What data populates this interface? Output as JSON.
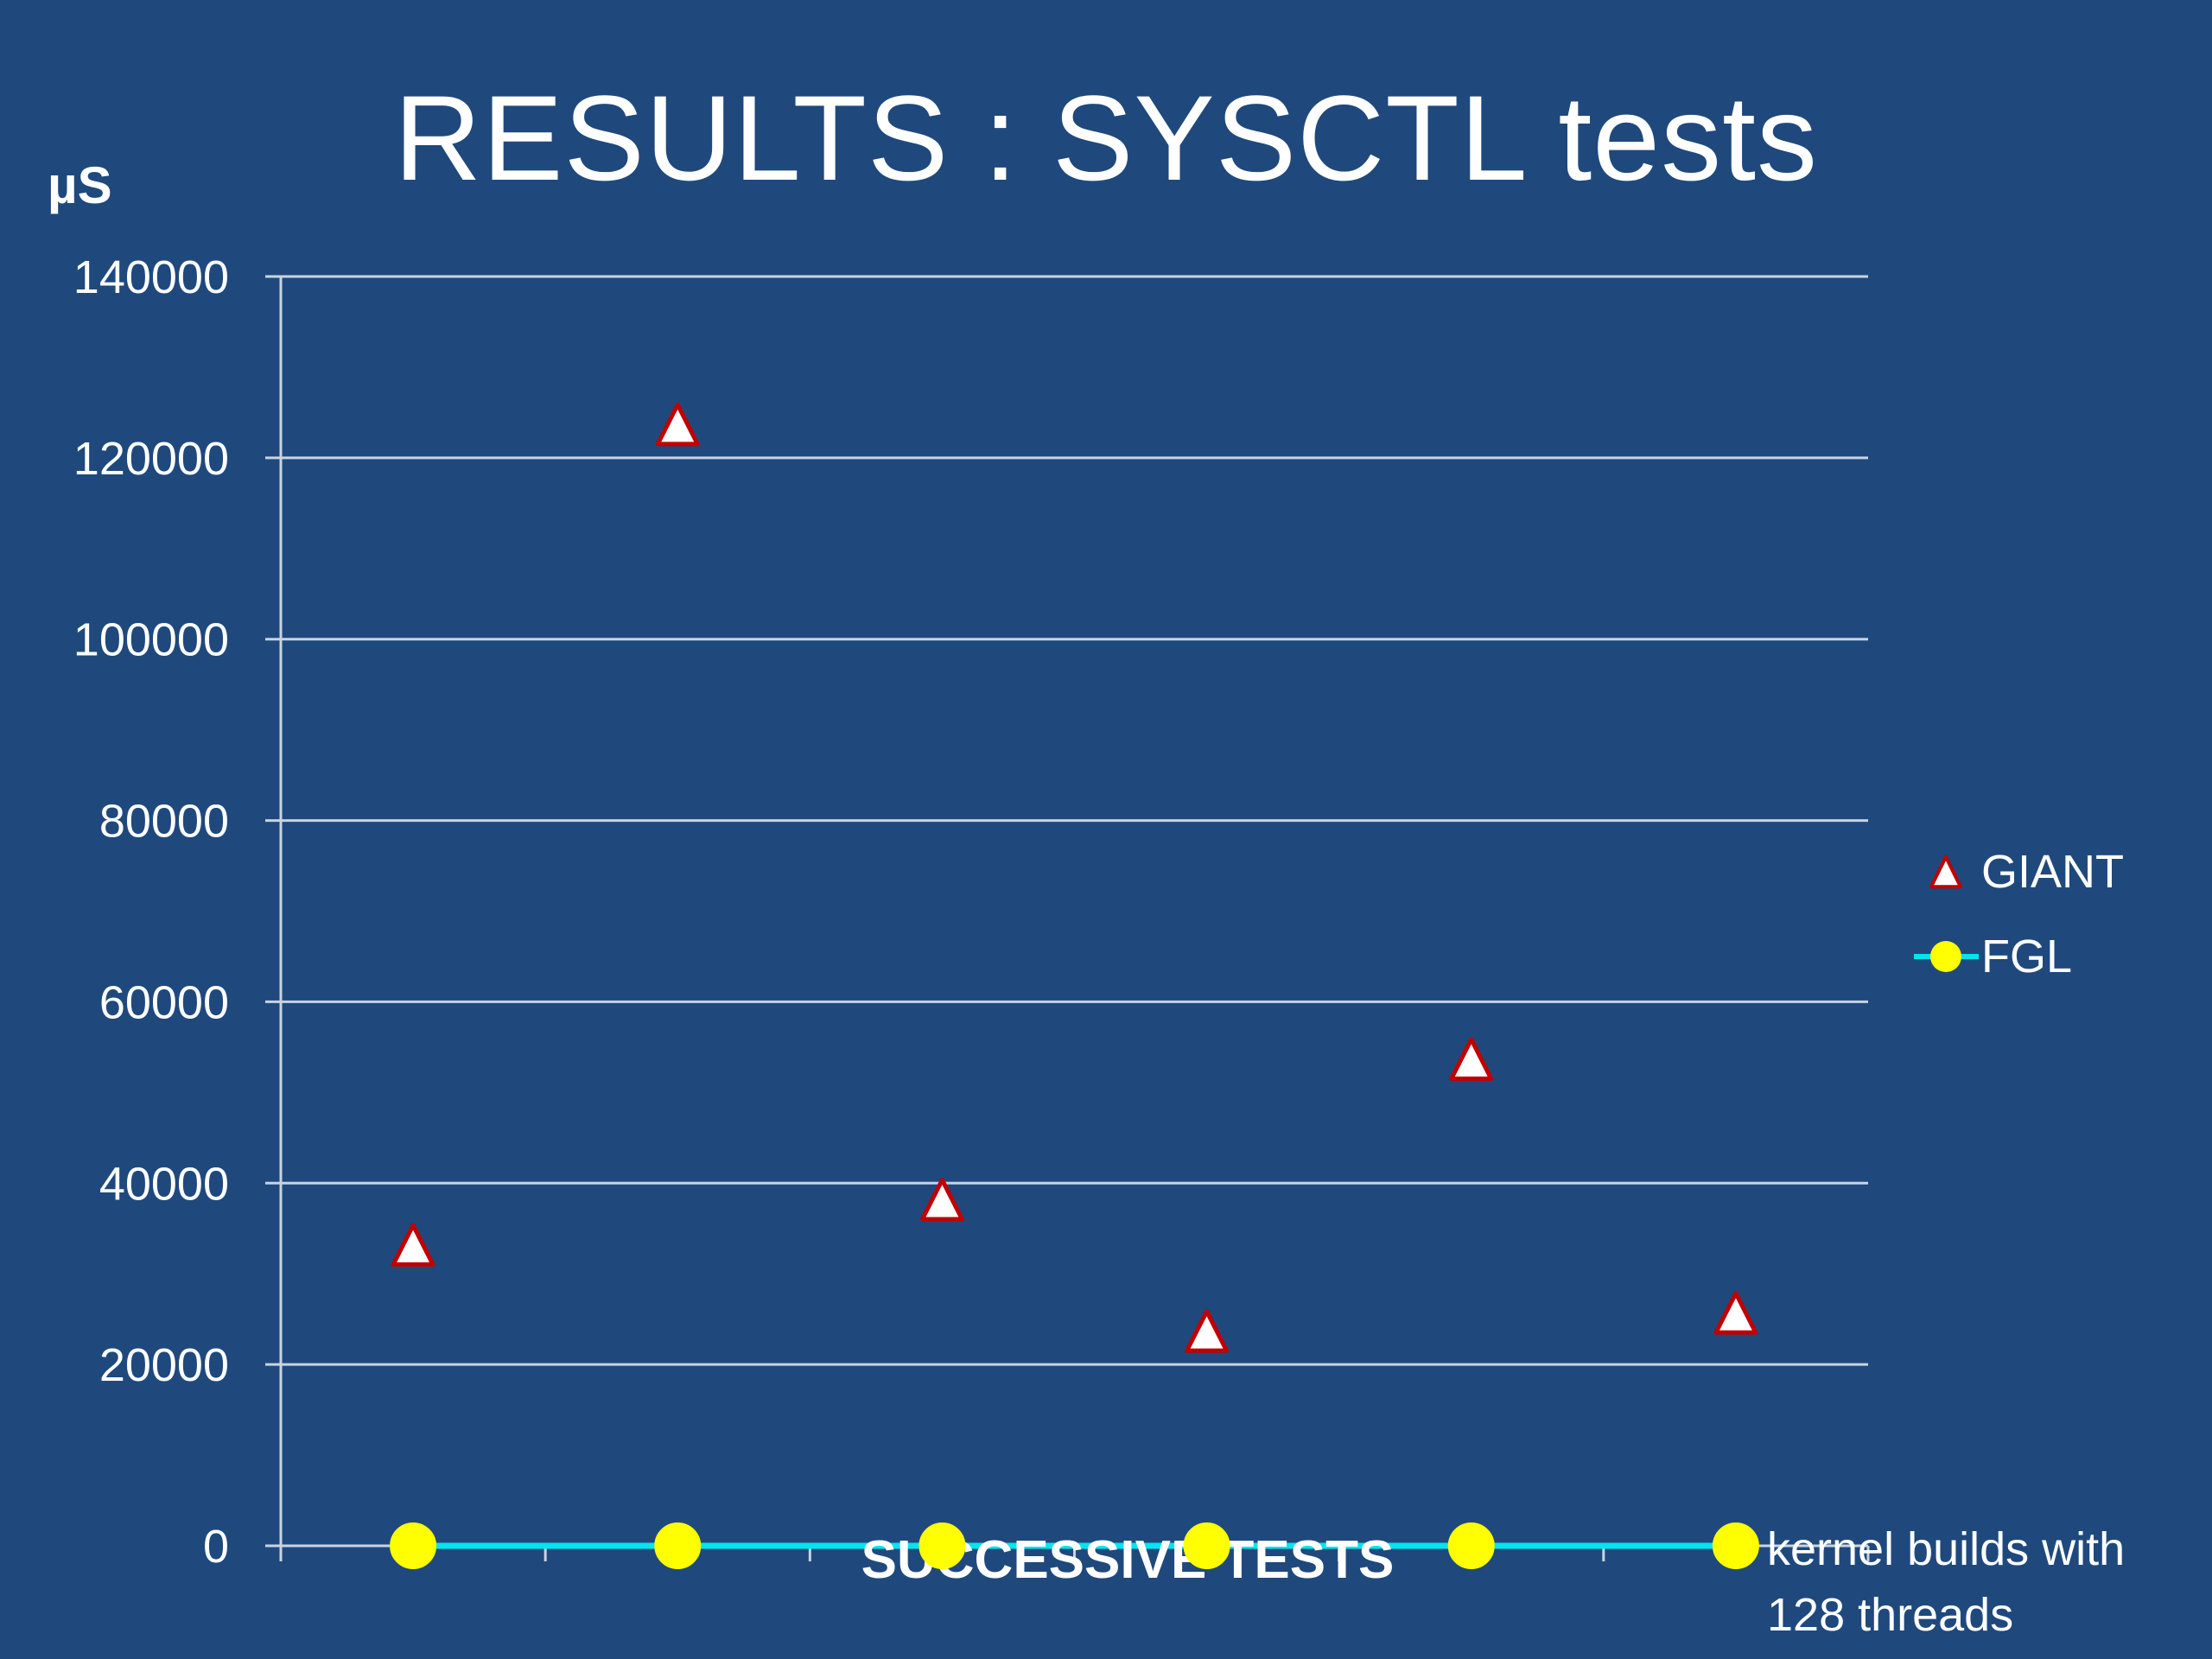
{
  "colors": {
    "background": "#1f497d",
    "gridline": "#c9d3e3",
    "giant_fill": "#ffffff",
    "giant_stroke": "#c00000",
    "fgl_line": "#00e5f0",
    "fgl_marker": "#ffff00"
  },
  "chart_data": {
    "type": "scatter",
    "title": "RESULTS : SYSCTL tests",
    "ylabel": "µS",
    "xlabel": "SUCCESSIVE TESTS",
    "annotation": "kernel builds with 128 threads",
    "annotation_lines": [
      "kernel builds with",
      "128 threads"
    ],
    "ylim": [
      0,
      140000
    ],
    "yticks": [
      0,
      20000,
      40000,
      60000,
      80000,
      100000,
      120000,
      140000
    ],
    "x": [
      1,
      2,
      3,
      4,
      5,
      6
    ],
    "grid": true,
    "legend": "right",
    "series": [
      {
        "name": "GIANT",
        "marker": "triangle",
        "line": false,
        "values": [
          33000,
          123500,
          38000,
          23500,
          53500,
          25500
        ]
      },
      {
        "name": "FGL",
        "marker": "circle",
        "line": true,
        "values": [
          0,
          0,
          0,
          0,
          0,
          0
        ]
      }
    ]
  }
}
